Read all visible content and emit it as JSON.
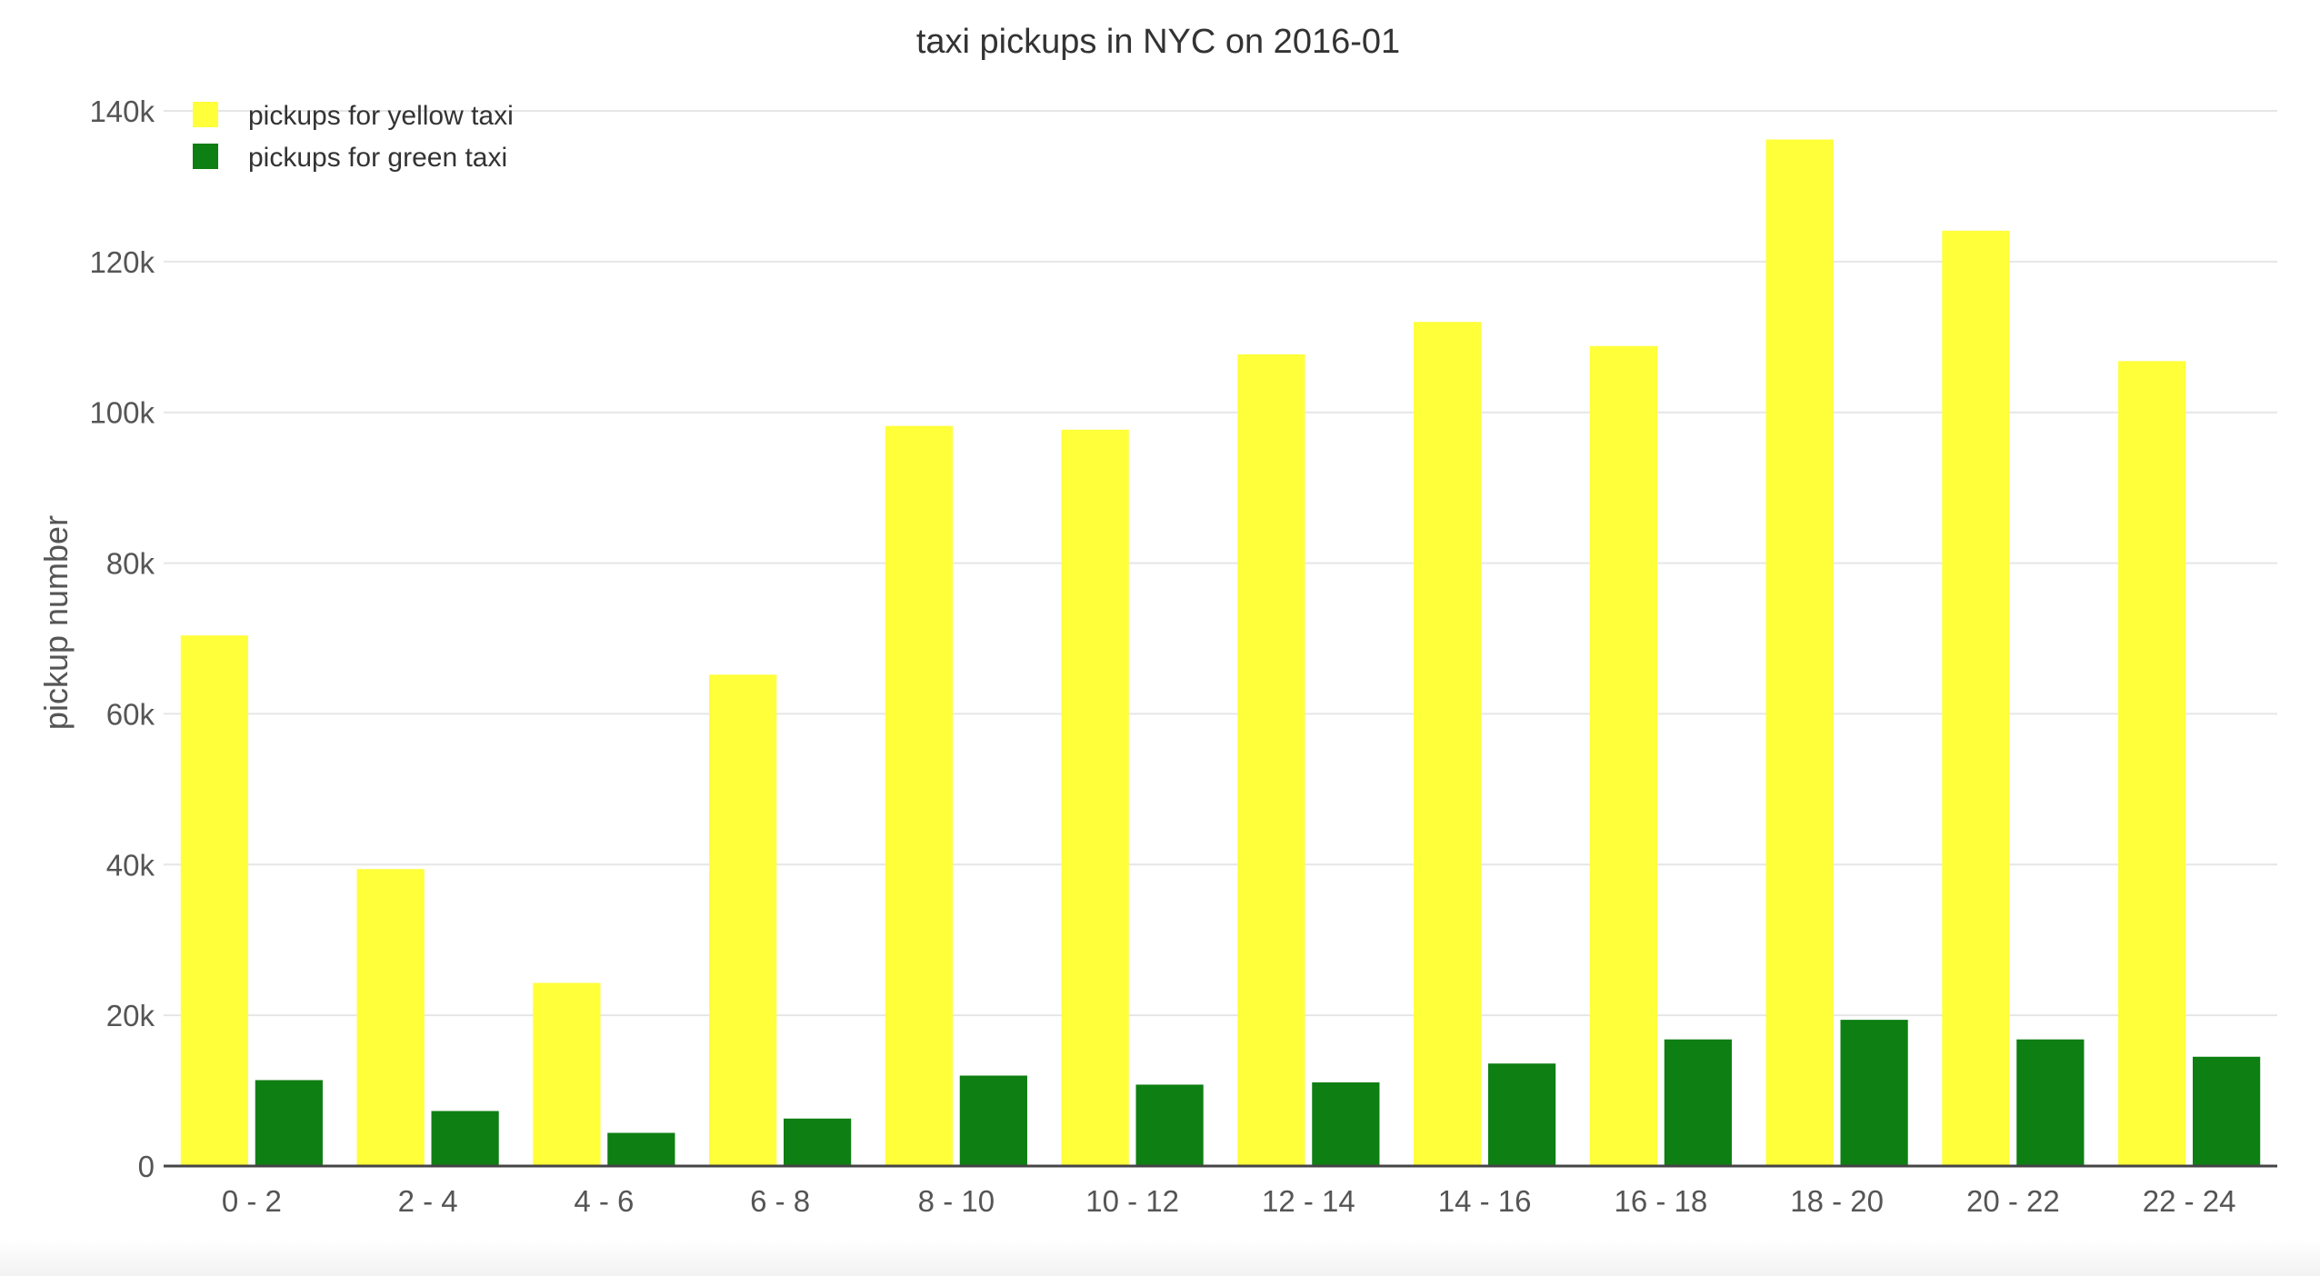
{
  "chart_data": {
    "type": "bar",
    "title": "taxi pickups in NYC on 2016-01",
    "xlabel": "",
    "ylabel": "pickup number",
    "categories": [
      "0 - 2",
      "2 - 4",
      "4 - 6",
      "6 - 8",
      "8 - 10",
      "10 - 12",
      "12 - 14",
      "14 - 16",
      "16 - 18",
      "18 - 20",
      "20 - 22",
      "22 - 24"
    ],
    "series": [
      {
        "name": "pickups for yellow taxi",
        "color": "#ffff3a",
        "values": [
          70400,
          39400,
          24300,
          65200,
          98200,
          97700,
          107700,
          112000,
          108800,
          136200,
          124100,
          106800
        ]
      },
      {
        "name": "pickups for green taxi",
        "color": "#0e7f12",
        "values": [
          11400,
          7300,
          4400,
          6300,
          12000,
          10800,
          11100,
          13600,
          16800,
          19400,
          16800,
          14500
        ]
      }
    ],
    "ylim": [
      0,
      140000
    ],
    "yticks": [
      {
        "value": 0,
        "label": "0"
      },
      {
        "value": 20000,
        "label": "20k"
      },
      {
        "value": 40000,
        "label": "40k"
      },
      {
        "value": 60000,
        "label": "60k"
      },
      {
        "value": 80000,
        "label": "80k"
      },
      {
        "value": 100000,
        "label": "100k"
      },
      {
        "value": 120000,
        "label": "120k"
      },
      {
        "value": 140000,
        "label": "140k"
      }
    ],
    "grid": true,
    "legend_position": "top-left"
  }
}
